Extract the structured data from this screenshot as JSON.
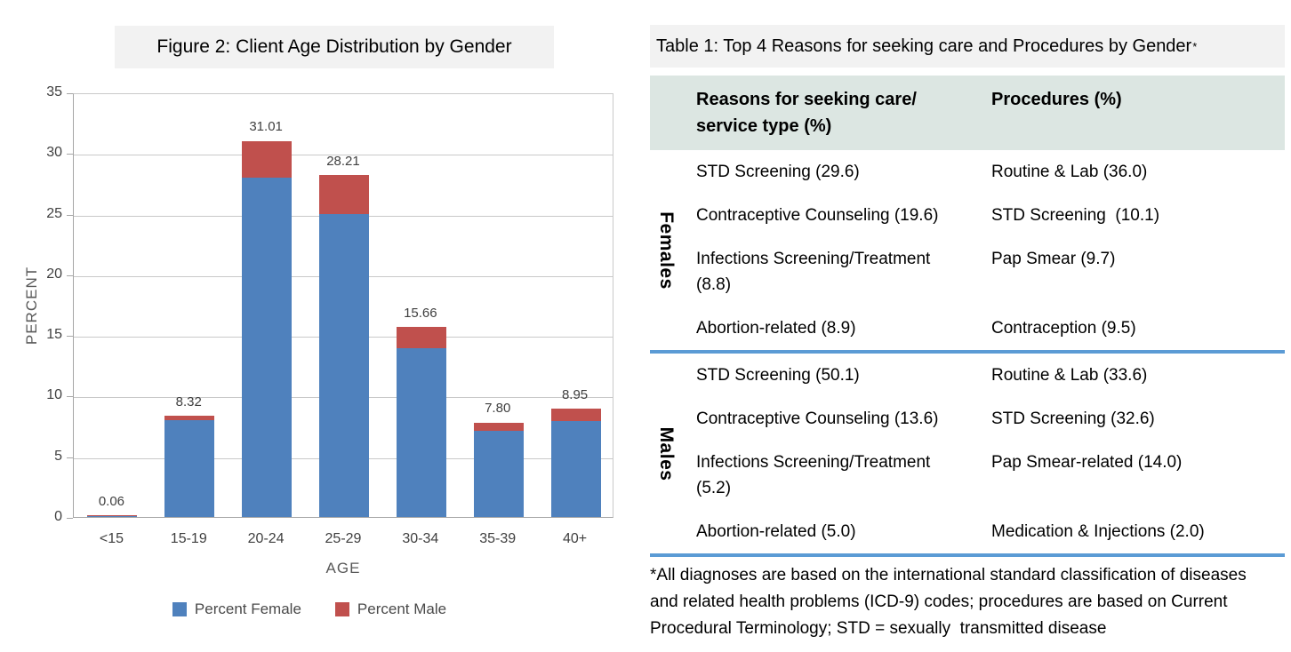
{
  "chart": {
    "title": "Figure 2: Client Age Distribution by Gender",
    "xlabel": "AGE",
    "ylabel": "PERCENT"
  },
  "chart_data": {
    "type": "bar",
    "stacked": true,
    "title": "Figure 2: Client Age Distribution by Gender",
    "xlabel": "AGE",
    "ylabel": "PERCENT",
    "ylim": [
      0,
      35
    ],
    "ytick_step": 5,
    "grid": true,
    "legend_position": "bottom",
    "categories": [
      "<15",
      "15-19",
      "20-24",
      "25-29",
      "30-34",
      "35-39",
      "40+"
    ],
    "series": [
      {
        "name": "Percent Female",
        "color": "#4F81BD",
        "values": [
          0.03,
          7.98,
          28.0,
          25.0,
          13.9,
          7.1,
          7.9
        ]
      },
      {
        "name": "Percent Male",
        "color": "#C0504D",
        "values": [
          0.03,
          0.34,
          3.01,
          3.21,
          1.76,
          0.7,
          1.05
        ]
      }
    ],
    "total_labels": [
      "0.06",
      "8.32",
      "31.01",
      "28.21",
      "15.66",
      "7.80",
      "8.95"
    ]
  },
  "table": {
    "title": "Table 1: Top 4 Reasons for seeking care and Procedures  by Gender",
    "title_sup": "*",
    "headers": [
      "Reasons for seeking care/ service type (%)",
      "Procedures (%)"
    ],
    "groups": [
      {
        "label": "Females",
        "rows": [
          {
            "reason": "STD Screening (29.6)",
            "procedure": "Routine & Lab (36.0)"
          },
          {
            "reason": "Contraceptive Counseling (19.6)",
            "procedure": "STD Screening  (10.1)"
          },
          {
            "reason": "Infections Screening/Treatment (8.8)",
            "procedure": "Pap Smear (9.7)"
          },
          {
            "reason": "Abortion-related (8.9)",
            "procedure": "Contraception (9.5)"
          }
        ]
      },
      {
        "label": "Males",
        "rows": [
          {
            "reason": "STD Screening (50.1)",
            "procedure": "Routine & Lab (33.6)"
          },
          {
            "reason": "Contraceptive Counseling (13.6)",
            "procedure": "STD Screening (32.6)"
          },
          {
            "reason": "Infections Screening/Treatment (5.2)",
            "procedure": "Pap Smear-related (14.0)"
          },
          {
            "reason": "Abortion-related (5.0)",
            "procedure": "Medication & Injections (2.0)"
          }
        ]
      }
    ],
    "footnote": "*All diagnoses are based on the international standard classification of diseases and related health problems (ICD-9) codes; procedures are based on Current Procedural Terminology; STD = sexually  transmitted disease"
  },
  "colors": {
    "bar_female": "#4F81BD",
    "bar_male": "#C0504D",
    "divider_blue": "#5B9BD5",
    "header_fill": "#DCE6E2",
    "title_fill": "#F2F2F2",
    "gridline": "#C9C9C9"
  }
}
